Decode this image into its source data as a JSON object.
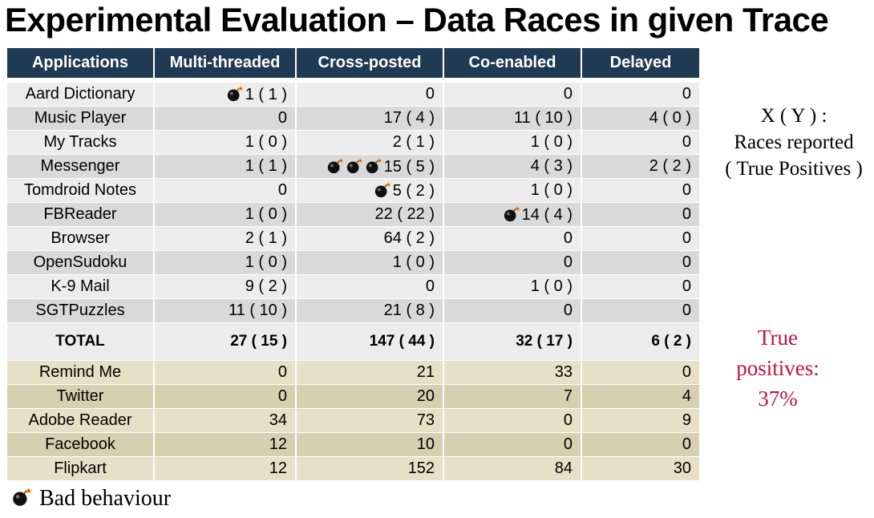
{
  "title": "Experimental Evaluation – Data Races in given Trace",
  "columns": [
    "Applications",
    "Multi-threaded",
    "Cross-posted",
    "Co-enabled",
    "Delayed"
  ],
  "rows": [
    {
      "app": "Aard Dictionary",
      "mt": "1 ( 1 )",
      "cp": "0",
      "ce": "0",
      "dl": "0",
      "bombs": {
        "mt": 1
      }
    },
    {
      "app": "Music Player",
      "mt": "0",
      "cp": "17 ( 4 )",
      "ce": "11 ( 10 )",
      "dl": "4 ( 0 )",
      "bombs": {}
    },
    {
      "app": "My Tracks",
      "mt": "1 ( 0 )",
      "cp": "2 ( 1 )",
      "ce": "1 ( 0 )",
      "dl": "0",
      "bombs": {}
    },
    {
      "app": "Messenger",
      "mt": "1 ( 1 )",
      "cp": "15 ( 5 )",
      "ce": "4 ( 3 )",
      "dl": "2 ( 2 )",
      "bombs": {
        "cp": 3
      }
    },
    {
      "app": "Tomdroid Notes",
      "mt": "0",
      "cp": "5 ( 2 )",
      "ce": "1 ( 0 )",
      "dl": "0",
      "bombs": {
        "cp": 1
      }
    },
    {
      "app": "FBReader",
      "mt": "1 ( 0 )",
      "cp": "22 ( 22 )",
      "ce": "14 ( 4 )",
      "dl": "0",
      "bombs": {
        "ce": 1
      }
    },
    {
      "app": "Browser",
      "mt": "2 ( 1 )",
      "cp": "64 ( 2 )",
      "ce": "0",
      "dl": "0",
      "bombs": {}
    },
    {
      "app": "OpenSudoku",
      "mt": "1 ( 0 )",
      "cp": "1 ( 0 )",
      "ce": "0",
      "dl": "0",
      "bombs": {}
    },
    {
      "app": "K-9 Mail",
      "mt": "9 ( 2 )",
      "cp": "0",
      "ce": "1 ( 0 )",
      "dl": "0",
      "bombs": {}
    },
    {
      "app": "SGTPuzzles",
      "mt": "11 ( 10 )",
      "cp": "21 ( 8 )",
      "ce": "0",
      "dl": "0",
      "bombs": {}
    }
  ],
  "total": {
    "app": "TOTAL",
    "mt": "27 ( 15 )",
    "cp": "147 ( 44 )",
    "ce": "32 ( 17 )",
    "dl": "6 ( 2 )"
  },
  "extra_rows": [
    {
      "app": "Remind Me",
      "mt": "0",
      "cp": "21",
      "ce": "33",
      "dl": "0"
    },
    {
      "app": "Twitter",
      "mt": "0",
      "cp": "20",
      "ce": "7",
      "dl": "4"
    },
    {
      "app": "Adobe Reader",
      "mt": "34",
      "cp": "73",
      "ce": "0",
      "dl": "9"
    },
    {
      "app": "Facebook",
      "mt": "12",
      "cp": "10",
      "ce": "0",
      "dl": "0"
    },
    {
      "app": "Flipkart",
      "mt": "12",
      "cp": "152",
      "ce": "84",
      "dl": "30"
    }
  ],
  "side_note": {
    "line1": "X ( Y ) :",
    "line2": "Races reported",
    "line3": "( True Positives )"
  },
  "true_positives": {
    "line1": "True",
    "line2": "positives:",
    "line3": "37%"
  },
  "legend": {
    "icon": "bomb-icon",
    "label": "Bad behaviour"
  },
  "colors": {
    "header_bg": "#1f3a53",
    "row_light": "#ececec",
    "row_dark": "#d9d9d9",
    "tan_light": "#e5e0c6",
    "tan_dark": "#d5d1b0",
    "accent_red": "#c0143c"
  }
}
